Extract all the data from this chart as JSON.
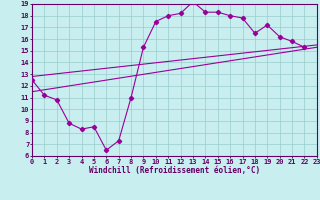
{
  "xlabel": "Windchill (Refroidissement éolien,°C)",
  "background_color": "#c8eef0",
  "line_color": "#990099",
  "grid_color": "#99cccc",
  "xlim": [
    0,
    23
  ],
  "ylim": [
    6,
    19
  ],
  "xticks": [
    0,
    1,
    2,
    3,
    4,
    5,
    6,
    7,
    8,
    9,
    10,
    11,
    12,
    13,
    14,
    15,
    16,
    17,
    18,
    19,
    20,
    21,
    22,
    23
  ],
  "yticks": [
    6,
    7,
    8,
    9,
    10,
    11,
    12,
    13,
    14,
    15,
    16,
    17,
    18,
    19
  ],
  "line1_x": [
    0,
    1,
    2,
    3,
    4,
    5,
    6,
    7,
    8,
    9,
    10,
    11,
    12,
    13,
    14,
    15,
    16,
    17,
    18,
    19,
    20,
    21,
    22
  ],
  "line1_y": [
    12.5,
    11.2,
    10.8,
    8.8,
    8.3,
    8.5,
    6.5,
    7.3,
    11.0,
    15.3,
    17.5,
    18.0,
    18.2,
    19.2,
    18.3,
    18.3,
    18.0,
    17.8,
    16.5,
    17.2,
    16.2,
    15.8,
    15.3
  ],
  "line2_x": [
    0,
    23
  ],
  "line2_y": [
    11.5,
    15.3
  ],
  "line3_x": [
    0,
    23
  ],
  "line3_y": [
    12.8,
    15.5
  ],
  "tick_fontsize": 5,
  "xlabel_fontsize": 5.5
}
